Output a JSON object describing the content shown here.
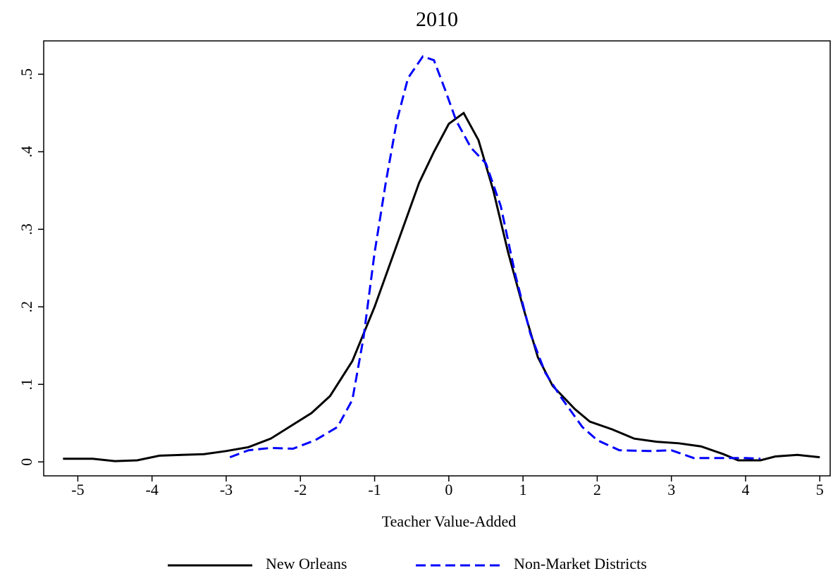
{
  "chart_data": {
    "type": "line",
    "title": "2010",
    "xlabel": "Teacher Value-Added",
    "xlim": [
      -5.46,
      5.14
    ],
    "ylim": [
      -0.018,
      0.543
    ],
    "xticks": [
      -5,
      -4,
      -3,
      -2,
      -1,
      0,
      1,
      2,
      3,
      4,
      5
    ],
    "yticks": [
      0,
      {
        "value": 0.1,
        "label": ".1"
      },
      {
        "value": 0.2,
        "label": ".2"
      },
      {
        "value": 0.3,
        "label": ".3"
      },
      {
        "value": 0.4,
        "label": ".4"
      },
      {
        "value": 0.5,
        "label": ".5"
      }
    ],
    "grid": false,
    "legend": "bottom",
    "series": [
      {
        "name": "New Orleans",
        "color": "#000000",
        "dash": false,
        "x": [
          -5.2,
          -4.8,
          -4.5,
          -4.2,
          -3.9,
          -3.6,
          -3.3,
          -3.0,
          -2.7,
          -2.4,
          -2.1,
          -1.85,
          -1.6,
          -1.3,
          -1.0,
          -0.7,
          -0.4,
          -0.2,
          0.0,
          0.2,
          0.4,
          0.6,
          0.8,
          1.0,
          1.2,
          1.4,
          1.7,
          1.9,
          2.2,
          2.5,
          2.8,
          3.1,
          3.4,
          3.7,
          3.9,
          4.2,
          4.4,
          4.7,
          5.0
        ],
        "values": [
          0.004,
          0.004,
          0.001,
          0.002,
          0.008,
          0.009,
          0.01,
          0.014,
          0.019,
          0.03,
          0.048,
          0.063,
          0.085,
          0.13,
          0.2,
          0.28,
          0.36,
          0.4,
          0.436,
          0.45,
          0.415,
          0.35,
          0.27,
          0.2,
          0.135,
          0.098,
          0.068,
          0.052,
          0.042,
          0.03,
          0.026,
          0.024,
          0.02,
          0.01,
          0.002,
          0.002,
          0.007,
          0.009,
          0.006
        ]
      },
      {
        "name": "Non-Market Districts",
        "color": "#0000ff",
        "dash": true,
        "x": [
          -2.95,
          -2.7,
          -2.4,
          -2.1,
          -1.8,
          -1.5,
          -1.3,
          -1.15,
          -1.0,
          -0.85,
          -0.7,
          -0.55,
          -0.35,
          -0.2,
          -0.05,
          0.1,
          0.3,
          0.5,
          0.7,
          0.9,
          1.1,
          1.3,
          1.5,
          1.8,
          2.0,
          2.3,
          2.7,
          3.0,
          3.3,
          3.7,
          4.0,
          4.2
        ],
        "values": [
          0.006,
          0.015,
          0.018,
          0.017,
          0.028,
          0.045,
          0.08,
          0.16,
          0.27,
          0.36,
          0.44,
          0.495,
          0.523,
          0.518,
          0.48,
          0.44,
          0.405,
          0.385,
          0.33,
          0.24,
          0.165,
          0.115,
          0.085,
          0.045,
          0.028,
          0.015,
          0.014,
          0.015,
          0.005,
          0.005,
          0.005,
          0.004
        ]
      }
    ]
  }
}
